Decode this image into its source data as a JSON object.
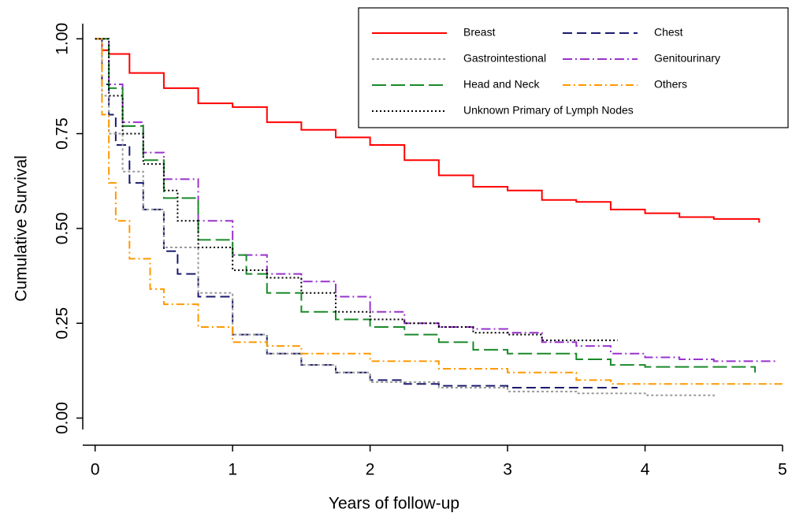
{
  "chart_data": {
    "type": "line",
    "step": "post",
    "xlabel": "Years of follow-up",
    "ylabel": "Cumulative Survival",
    "xlim": [
      -0.09,
      5
    ],
    "ylim": [
      -0.03,
      1.04
    ],
    "xticks": [
      0,
      1,
      2,
      3,
      4,
      5
    ],
    "yticks": [
      {
        "value": 1,
        "label": "1.00"
      },
      0.75,
      {
        "value": 0.5,
        "label": "0.50"
      },
      0.25,
      {
        "value": 0,
        "label": "0.00"
      }
    ],
    "legend": "upper right",
    "series": [
      {
        "name": "Breast",
        "color": "#ff0000",
        "dash": "none",
        "x": [
          0,
          0.05,
          0.1,
          0.25,
          0.5,
          0.75,
          1,
          1.25,
          1.5,
          1.75,
          2,
          2.25,
          2.5,
          2.75,
          3,
          3.25,
          3.5,
          3.75,
          4,
          4.25,
          4.5,
          4.83
        ],
        "values": [
          1,
          0.97,
          0.96,
          0.91,
          0.87,
          0.83,
          0.82,
          0.78,
          0.76,
          0.74,
          0.72,
          0.68,
          0.64,
          0.61,
          0.6,
          0.575,
          0.57,
          0.55,
          0.54,
          0.53,
          0.525,
          0.515
        ]
      },
      {
        "name": "Chest",
        "color": "#1a1a6e",
        "dash": "12 6",
        "x": [
          0,
          0.05,
          0.1,
          0.15,
          0.25,
          0.35,
          0.5,
          0.6,
          0.75,
          1,
          1.25,
          1.5,
          1.75,
          2,
          2.25,
          2.5,
          3,
          3.8
        ],
        "values": [
          1,
          0.88,
          0.8,
          0.72,
          0.62,
          0.55,
          0.44,
          0.38,
          0.32,
          0.22,
          0.17,
          0.14,
          0.12,
          0.1,
          0.09,
          0.085,
          0.08,
          0.08
        ]
      },
      {
        "name": "Gastrointestional",
        "color": "#999999",
        "dash": "3 3",
        "x": [
          0,
          0.05,
          0.1,
          0.2,
          0.35,
          0.5,
          0.75,
          1,
          1.25,
          1.5,
          1.75,
          2,
          2.5,
          3,
          3.5,
          4,
          4.5
        ],
        "values": [
          1,
          0.85,
          0.75,
          0.65,
          0.55,
          0.45,
          0.33,
          0.22,
          0.17,
          0.14,
          0.12,
          0.095,
          0.08,
          0.07,
          0.065,
          0.06,
          0.055
        ]
      },
      {
        "name": "Genitourinary",
        "color": "#9933cc",
        "dash": "12 4 2 4",
        "x": [
          0,
          0.1,
          0.2,
          0.35,
          0.5,
          0.75,
          1,
          1.25,
          1.5,
          1.75,
          2,
          2.25,
          2.5,
          2.75,
          3,
          3.25,
          3.5,
          3.75,
          4,
          4.25,
          4.5,
          4.95
        ],
        "values": [
          1,
          0.88,
          0.78,
          0.7,
          0.63,
          0.52,
          0.43,
          0.38,
          0.36,
          0.32,
          0.28,
          0.25,
          0.24,
          0.235,
          0.225,
          0.2,
          0.19,
          0.17,
          0.16,
          0.155,
          0.15,
          0.145
        ]
      },
      {
        "name": "Head and Neck",
        "color": "#1a8a2a",
        "dash": "18 6",
        "x": [
          0,
          0.1,
          0.2,
          0.35,
          0.5,
          0.75,
          1,
          1.1,
          1.25,
          1.5,
          1.75,
          2,
          2.25,
          2.5,
          2.75,
          3,
          3.5,
          3.75,
          4,
          4.5,
          4.8
        ],
        "values": [
          1,
          0.87,
          0.77,
          0.68,
          0.58,
          0.47,
          0.43,
          0.38,
          0.33,
          0.28,
          0.26,
          0.24,
          0.22,
          0.2,
          0.18,
          0.17,
          0.155,
          0.14,
          0.135,
          0.135,
          0.12
        ]
      },
      {
        "name": "Others",
        "color": "#ff9900",
        "dash": "10 4 2 4",
        "x": [
          0,
          0.05,
          0.1,
          0.15,
          0.25,
          0.4,
          0.5,
          0.75,
          1,
          1.25,
          1.5,
          2,
          2.5,
          3,
          3.5,
          3.75,
          4,
          5
        ],
        "values": [
          1,
          0.8,
          0.62,
          0.52,
          0.42,
          0.34,
          0.3,
          0.24,
          0.2,
          0.19,
          0.17,
          0.15,
          0.13,
          0.12,
          0.1,
          0.09,
          0.09,
          0.085
        ]
      },
      {
        "name": "Unknown Primary of Lymph Nodes",
        "color": "#000000",
        "dash": "2 3",
        "x": [
          0,
          0.1,
          0.2,
          0.35,
          0.5,
          0.6,
          0.75,
          1,
          1.25,
          1.5,
          1.75,
          2,
          2.25,
          2.5,
          2.75,
          3,
          3.25,
          3.8
        ],
        "values": [
          1,
          0.85,
          0.75,
          0.67,
          0.6,
          0.52,
          0.45,
          0.39,
          0.37,
          0.33,
          0.28,
          0.26,
          0.25,
          0.24,
          0.225,
          0.22,
          0.205,
          0.205
        ]
      }
    ]
  }
}
